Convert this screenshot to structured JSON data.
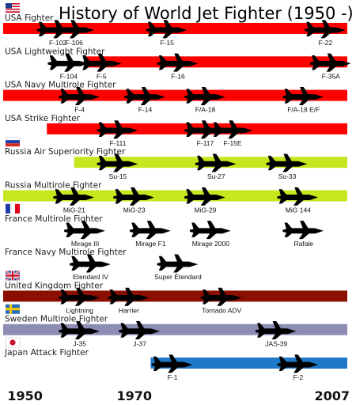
{
  "chart_data": {
    "type": "timeline",
    "title": "History of World Jet Fighter (1950 -)",
    "x_ticks": [
      1950,
      1970,
      2007
    ],
    "xlim": [
      1946,
      2009
    ],
    "categories": [
      {
        "name": "USA  Fighter",
        "flag": "usa",
        "color": "#ff0000",
        "start": 1946,
        "aircraft": [
          {
            "name": "F-102",
            "year": 1956
          },
          {
            "name": "F-106",
            "year": 1959
          },
          {
            "name": "F-15",
            "year": 1976
          },
          {
            "name": "F-22",
            "year": 2005
          }
        ]
      },
      {
        "name": "USA  Lightweight Fighter",
        "flag": "",
        "color": "#ff0000",
        "start": 1961,
        "aircraft": [
          {
            "name": "F-104",
            "year": 1958
          },
          {
            "name": "F-5",
            "year": 1964
          },
          {
            "name": "F-16",
            "year": 1978
          },
          {
            "name": "F-35A",
            "year": 2006
          }
        ]
      },
      {
        "name": "USA  Navy Multirole Fighter",
        "flag": "",
        "color": "#ff0000",
        "start": 1946,
        "aircraft": [
          {
            "name": "F-4",
            "year": 1960
          },
          {
            "name": "F-14",
            "year": 1972
          },
          {
            "name": "F/A-18",
            "year": 1983
          },
          {
            "name": "F/A-18 E/F",
            "year": 2001
          }
        ]
      },
      {
        "name": "USA  Strike Fighter",
        "flag": "",
        "color": "#ff0000",
        "start": 1954,
        "aircraft": [
          {
            "name": "F-111",
            "year": 1967
          },
          {
            "name": "F-117",
            "year": 1983
          },
          {
            "name": "F-15E",
            "year": 1988
          }
        ]
      },
      {
        "name": "Russia  Air Superiority Fighter",
        "flag": "russia",
        "color": "#c8e61e",
        "start": 1959,
        "aircraft": [
          {
            "name": "Su-15",
            "year": 1967
          },
          {
            "name": "Su-27",
            "year": 1985
          },
          {
            "name": "Su-33",
            "year": 1998
          }
        ]
      },
      {
        "name": "Russia Multirole Fighter",
        "flag": "",
        "color": "#c8e61e",
        "start": 1946,
        "aircraft": [
          {
            "name": "MiG-21",
            "year": 1959
          },
          {
            "name": "MiG-23",
            "year": 1970
          },
          {
            "name": "MiG-29",
            "year": 1983
          },
          {
            "name": "MiG 144",
            "year": 2000
          }
        ]
      },
      {
        "name": "France Multirole Fighter",
        "flag": "france",
        "color": "#ffffff",
        "start": 1946,
        "aircraft": [
          {
            "name": "Mirage III",
            "year": 1961
          },
          {
            "name": "Mirage F1",
            "year": 1973
          },
          {
            "name": "Mirage 2000",
            "year": 1984
          },
          {
            "name": "Rafale",
            "year": 2001
          }
        ]
      },
      {
        "name": "France Navy Multirole Fighter",
        "flag": "",
        "color": "#ffffff",
        "start": 1956,
        "aircraft": [
          {
            "name": "Etendard IV",
            "year": 1962
          },
          {
            "name": "Super Étendard",
            "year": 1978
          }
        ]
      },
      {
        "name": "United Kingdom Fighter",
        "flag": "uk",
        "color": "#8b0f00",
        "start": 1946,
        "aircraft": [
          {
            "name": "Lightning",
            "year": 1960
          },
          {
            "name": "Harrier",
            "year": 1969
          },
          {
            "name": "Tornado ADV",
            "year": 1986
          }
        ]
      },
      {
        "name": "Sweden Multirole Fighter",
        "flag": "sweden",
        "color": "#8c8cb4",
        "start": 1946,
        "aircraft": [
          {
            "name": "J-35",
            "year": 1960
          },
          {
            "name": "J-37",
            "year": 1971
          },
          {
            "name": "JAS-39",
            "year": 1996
          }
        ]
      },
      {
        "name": "Japan Attack Fighter",
        "flag": "japan",
        "color": "#1e78c8",
        "start": 1973,
        "aircraft": [
          {
            "name": "F-1",
            "year": 1977
          },
          {
            "name": "F-2",
            "year": 2000
          }
        ]
      }
    ]
  }
}
